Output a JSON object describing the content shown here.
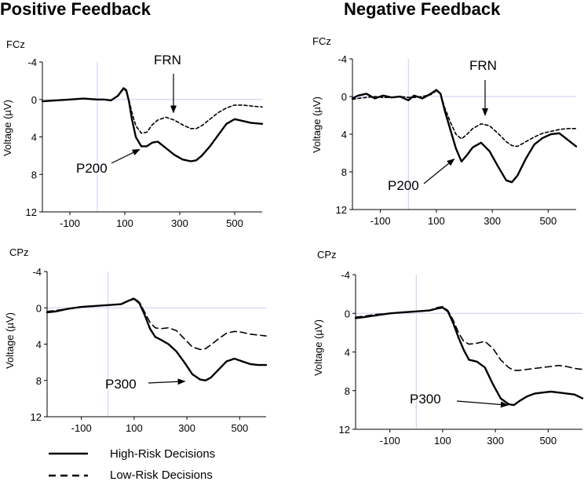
{
  "figure": {
    "titles": [
      "Positive Feedback",
      "Negative Feedback"
    ]
  },
  "legend": {
    "items": [
      {
        "label": "High-Risk Decisions",
        "style": "solid"
      },
      {
        "label": "Low-Risk Decisions",
        "style": "dashed"
      }
    ]
  },
  "chart_data": [
    {
      "type": "line",
      "id": "pos-fcz",
      "electrode": "FCz",
      "xlabel": "",
      "ylabel": "Voltage (µV)",
      "xlim": [
        -200,
        600
      ],
      "ylim": [
        -4,
        12
      ],
      "y_inverted": true,
      "xticks": [
        -100,
        100,
        300,
        500
      ],
      "yticks": [
        -4,
        0,
        4,
        8,
        12
      ],
      "series": [
        {
          "name": "High-Risk Decisions",
          "style": "solid",
          "x": [
            -200,
            -150,
            -100,
            -50,
            0,
            25,
            50,
            75,
            95,
            105,
            115,
            125,
            140,
            160,
            180,
            200,
            220,
            250,
            280,
            310,
            340,
            360,
            380,
            410,
            440,
            470,
            500,
            530,
            560,
            600
          ],
          "y": [
            0.2,
            0.1,
            0,
            -0.1,
            0,
            0,
            0.1,
            -0.4,
            -1.2,
            -1.0,
            0.2,
            2.0,
            4.0,
            5.0,
            5.0,
            4.6,
            4.5,
            5.2,
            5.9,
            6.4,
            6.6,
            6.5,
            6.0,
            5.0,
            3.8,
            2.6,
            2.1,
            2.3,
            2.5,
            2.6
          ]
        },
        {
          "name": "Low-Risk Decisions",
          "style": "dashed",
          "x": [
            -200,
            -150,
            -100,
            -50,
            0,
            25,
            50,
            75,
            95,
            105,
            115,
            125,
            140,
            160,
            180,
            200,
            220,
            250,
            280,
            310,
            340,
            360,
            380,
            410,
            440,
            470,
            500,
            530,
            560,
            600
          ],
          "y": [
            0.2,
            0.1,
            0,
            -0.1,
            0,
            0,
            0.1,
            -0.4,
            -1.1,
            -0.9,
            0.1,
            1.3,
            2.8,
            3.6,
            3.5,
            2.7,
            2.2,
            1.9,
            2.2,
            2.7,
            3.1,
            3.1,
            2.8,
            2.1,
            1.4,
            0.9,
            0.6,
            0.6,
            0.7,
            0.8
          ]
        }
      ],
      "annotations": [
        {
          "text": "FRN",
          "target_x": 255,
          "target_y": 1.9,
          "arrow": "down"
        },
        {
          "text": "P200",
          "target_x": 165,
          "target_y": 5.0,
          "arrow": "up-right"
        }
      ]
    },
    {
      "type": "line",
      "id": "neg-fcz",
      "electrode": "FCz",
      "xlabel": "",
      "ylabel": "Voltage (µV)",
      "xlim": [
        -200,
        600
      ],
      "ylim": [
        -4,
        12
      ],
      "y_inverted": true,
      "xticks": [
        -100,
        100,
        300,
        500
      ],
      "yticks": [
        -4,
        0,
        4,
        8,
        12
      ],
      "series": [
        {
          "name": "High-Risk Decisions",
          "style": "solid",
          "x": [
            -200,
            -180,
            -150,
            -120,
            -90,
            -60,
            -30,
            0,
            20,
            50,
            80,
            100,
            115,
            130,
            150,
            170,
            190,
            210,
            230,
            260,
            290,
            320,
            350,
            370,
            390,
            420,
            450,
            480,
            510,
            540,
            570,
            600
          ],
          "y": [
            0.2,
            -0.1,
            -0.3,
            0.2,
            -0.1,
            0.1,
            0,
            0.4,
            -0.1,
            0.2,
            -0.3,
            -0.7,
            -0.3,
            1.5,
            3.5,
            5.5,
            6.9,
            6.2,
            5.4,
            4.9,
            5.8,
            7.4,
            8.9,
            9.1,
            8.4,
            6.6,
            5.1,
            4.4,
            4.0,
            3.9,
            4.6,
            5.3
          ]
        },
        {
          "name": "Low-Risk Decisions",
          "style": "dashed",
          "x": [
            -200,
            -180,
            -150,
            -120,
            -90,
            -60,
            -30,
            0,
            20,
            50,
            80,
            100,
            115,
            130,
            150,
            170,
            190,
            210,
            230,
            260,
            290,
            320,
            350,
            370,
            390,
            420,
            450,
            480,
            510,
            540,
            570,
            600
          ],
          "y": [
            0.3,
            0.2,
            0.1,
            0,
            0.1,
            0.1,
            0,
            0.1,
            0.1,
            0,
            -0.2,
            -0.6,
            -0.3,
            1.2,
            2.7,
            4.0,
            4.5,
            4.0,
            3.4,
            2.9,
            3.1,
            3.9,
            4.8,
            5.2,
            5.3,
            4.8,
            4.3,
            3.9,
            3.7,
            3.5,
            3.4,
            3.4
          ]
        }
      ],
      "annotations": [
        {
          "text": "FRN",
          "target_x": 265,
          "target_y": 2.5,
          "arrow": "down"
        },
        {
          "text": "P200",
          "target_x": 175,
          "target_y": 6.3,
          "arrow": "up-right"
        }
      ]
    },
    {
      "type": "line",
      "id": "pos-cpz",
      "electrode": "CPz",
      "xlabel": "",
      "ylabel": "Voltage (µV)",
      "xlim": [
        -230,
        600
      ],
      "ylim": [
        -4,
        12
      ],
      "y_inverted": true,
      "xticks": [
        -100,
        100,
        300,
        500
      ],
      "yticks": [
        -4,
        0,
        4,
        8,
        12
      ],
      "series": [
        {
          "name": "High-Risk Decisions",
          "style": "solid",
          "x": [
            -230,
            -200,
            -150,
            -100,
            -50,
            0,
            50,
            80,
            100,
            120,
            140,
            160,
            180,
            200,
            230,
            260,
            290,
            320,
            350,
            370,
            390,
            420,
            450,
            480,
            510,
            540,
            570,
            600
          ],
          "y": [
            0.5,
            0.4,
            0.1,
            -0.1,
            -0.2,
            -0.3,
            -0.4,
            -0.8,
            -1.0,
            -0.5,
            0.8,
            2.3,
            3.2,
            3.5,
            4.0,
            4.8,
            6.0,
            7.3,
            7.9,
            8.0,
            7.7,
            6.8,
            5.9,
            5.6,
            5.9,
            6.2,
            6.3,
            6.3
          ]
        },
        {
          "name": "Low-Risk Decisions",
          "style": "dashed",
          "x": [
            -230,
            -200,
            -150,
            -100,
            -50,
            0,
            50,
            80,
            100,
            120,
            140,
            160,
            180,
            200,
            230,
            260,
            290,
            320,
            350,
            370,
            390,
            420,
            450,
            480,
            510,
            540,
            570,
            600
          ],
          "y": [
            0.4,
            0.3,
            0.1,
            -0.1,
            -0.2,
            -0.3,
            -0.4,
            -0.8,
            -1.1,
            -0.6,
            0.5,
            1.6,
            2.2,
            2.3,
            2.2,
            2.5,
            3.4,
            4.3,
            4.6,
            4.5,
            4.1,
            3.4,
            2.8,
            2.6,
            2.7,
            2.9,
            3.0,
            3.1
          ]
        }
      ],
      "annotations": [
        {
          "text": "P300",
          "target_x": 310,
          "target_y": 8.1,
          "arrow": "right"
        }
      ]
    },
    {
      "type": "line",
      "id": "neg-cpz",
      "electrode": "CPz",
      "xlabel": "",
      "ylabel": "Voltage (µV)",
      "xlim": [
        -230,
        630
      ],
      "ylim": [
        -4,
        12
      ],
      "y_inverted": true,
      "xticks": [
        -100,
        100,
        300,
        500
      ],
      "yticks": [
        -4,
        0,
        4,
        8,
        12
      ],
      "series": [
        {
          "name": "High-Risk Decisions",
          "style": "solid",
          "x": [
            -230,
            -200,
            -150,
            -100,
            -50,
            0,
            50,
            80,
            100,
            120,
            140,
            160,
            180,
            200,
            230,
            260,
            290,
            320,
            350,
            370,
            390,
            420,
            450,
            480,
            510,
            540,
            570,
            600,
            630
          ],
          "y": [
            0.5,
            0.4,
            0.2,
            0,
            -0.1,
            -0.2,
            -0.3,
            -0.5,
            -0.6,
            -0.2,
            1.0,
            2.5,
            3.8,
            4.8,
            5.0,
            5.6,
            7.3,
            8.8,
            9.4,
            9.5,
            9.1,
            8.6,
            8.3,
            8.2,
            8.1,
            8.2,
            8.3,
            8.4,
            8.8
          ]
        },
        {
          "name": "Low-Risk Decisions",
          "style": "dashed",
          "x": [
            -230,
            -200,
            -150,
            -100,
            -50,
            0,
            50,
            80,
            100,
            120,
            140,
            160,
            180,
            200,
            230,
            260,
            290,
            320,
            350,
            370,
            390,
            420,
            450,
            480,
            510,
            540,
            570,
            600,
            630
          ],
          "y": [
            0.4,
            0.3,
            0.1,
            0,
            -0.1,
            -0.2,
            -0.3,
            -0.6,
            -0.7,
            -0.3,
            0.7,
            2.0,
            2.9,
            3.2,
            3.1,
            2.9,
            3.6,
            4.8,
            5.6,
            5.9,
            5.9,
            5.8,
            5.7,
            5.6,
            5.5,
            5.4,
            5.5,
            5.7,
            5.8
          ]
        }
      ],
      "annotations": [
        {
          "text": "P300",
          "target_x": 365,
          "target_y": 9.5,
          "arrow": "right"
        }
      ]
    }
  ]
}
